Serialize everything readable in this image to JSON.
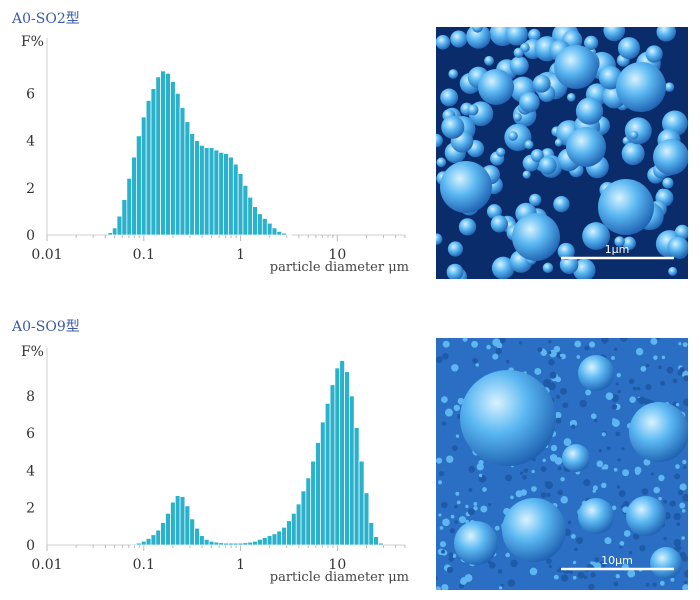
{
  "colors": {
    "bar": "#2ab1cc",
    "bar_edge": "#ffffff",
    "title": "#3b5ba6",
    "sem_bg": "#0a2c6b",
    "sem_particle": "#3aa0e8"
  },
  "chart_data": [
    {
      "type": "bar",
      "title": "A0-SO2型",
      "ylabel": "F%",
      "xlabel": "particle diameter μm",
      "xscale": "log",
      "xlim": [
        0.01,
        50
      ],
      "ylim": [
        0,
        7.5
      ],
      "x_tick_labels": [
        "0.01",
        "0.1",
        "1",
        "10"
      ],
      "x_ticks": [
        0.01,
        0.1,
        1,
        10
      ],
      "y_ticks": [
        0,
        2,
        4,
        6
      ],
      "x": [
        0.045,
        0.05,
        0.056,
        0.063,
        0.071,
        0.079,
        0.089,
        0.1,
        0.112,
        0.126,
        0.141,
        0.158,
        0.178,
        0.2,
        0.224,
        0.251,
        0.282,
        0.316,
        0.355,
        0.398,
        0.447,
        0.501,
        0.562,
        0.631,
        0.708,
        0.794,
        0.891,
        1.0,
        1.12,
        1.26,
        1.41,
        1.58,
        1.78,
        2.0,
        2.24,
        2.51,
        2.82,
        3.16
      ],
      "values": [
        0.1,
        0.3,
        0.8,
        1.5,
        2.4,
        3.3,
        4.2,
        5.0,
        5.7,
        6.2,
        6.7,
        6.95,
        6.85,
        6.5,
        6.0,
        5.4,
        4.8,
        4.3,
        4.0,
        3.8,
        3.7,
        3.7,
        3.6,
        3.5,
        3.45,
        3.3,
        3.0,
        2.6,
        2.1,
        1.6,
        1.2,
        0.9,
        0.7,
        0.5,
        0.3,
        0.15,
        0.08,
        0.03
      ]
    },
    {
      "type": "bar",
      "title": "A0-SO9型",
      "ylabel": "F%",
      "xlabel": "particle diameter μm",
      "xscale": "log",
      "xlim": [
        0.01,
        50
      ],
      "ylim": [
        0,
        9.5
      ],
      "x_tick_labels": [
        "0.01",
        "0.1",
        "1",
        "10"
      ],
      "x_ticks": [
        0.01,
        0.1,
        1,
        10
      ],
      "y_ticks": [
        0,
        2,
        4,
        6,
        8
      ],
      "x": [
        0.079,
        0.089,
        0.1,
        0.112,
        0.126,
        0.141,
        0.158,
        0.178,
        0.2,
        0.224,
        0.251,
        0.282,
        0.316,
        0.355,
        0.398,
        0.447,
        0.501,
        0.562,
        0.631,
        0.708,
        0.794,
        0.891,
        1.0,
        1.12,
        1.26,
        1.41,
        1.58,
        1.78,
        2.0,
        2.24,
        2.51,
        2.82,
        3.16,
        3.55,
        3.98,
        4.47,
        5.01,
        5.62,
        6.31,
        7.08,
        7.94,
        8.91,
        10.0,
        11.2,
        12.6,
        14.1,
        15.8,
        17.8,
        20.0,
        22.4,
        25.1,
        28.2
      ],
      "values": [
        0.05,
        0.1,
        0.2,
        0.35,
        0.55,
        0.8,
        1.2,
        1.7,
        2.3,
        2.65,
        2.6,
        2.1,
        1.4,
        0.9,
        0.5,
        0.3,
        0.2,
        0.15,
        0.12,
        0.1,
        0.1,
        0.1,
        0.1,
        0.12,
        0.15,
        0.2,
        0.3,
        0.4,
        0.5,
        0.6,
        0.75,
        0.95,
        1.3,
        1.7,
        2.2,
        2.9,
        3.6,
        4.5,
        5.5,
        6.6,
        7.6,
        8.6,
        9.5,
        9.9,
        9.3,
        8.0,
        6.3,
        4.5,
        2.8,
        1.2,
        0.45,
        0.1
      ]
    }
  ],
  "sem_images": [
    {
      "scale_label": "1μm"
    },
    {
      "scale_label": "10μm"
    }
  ]
}
